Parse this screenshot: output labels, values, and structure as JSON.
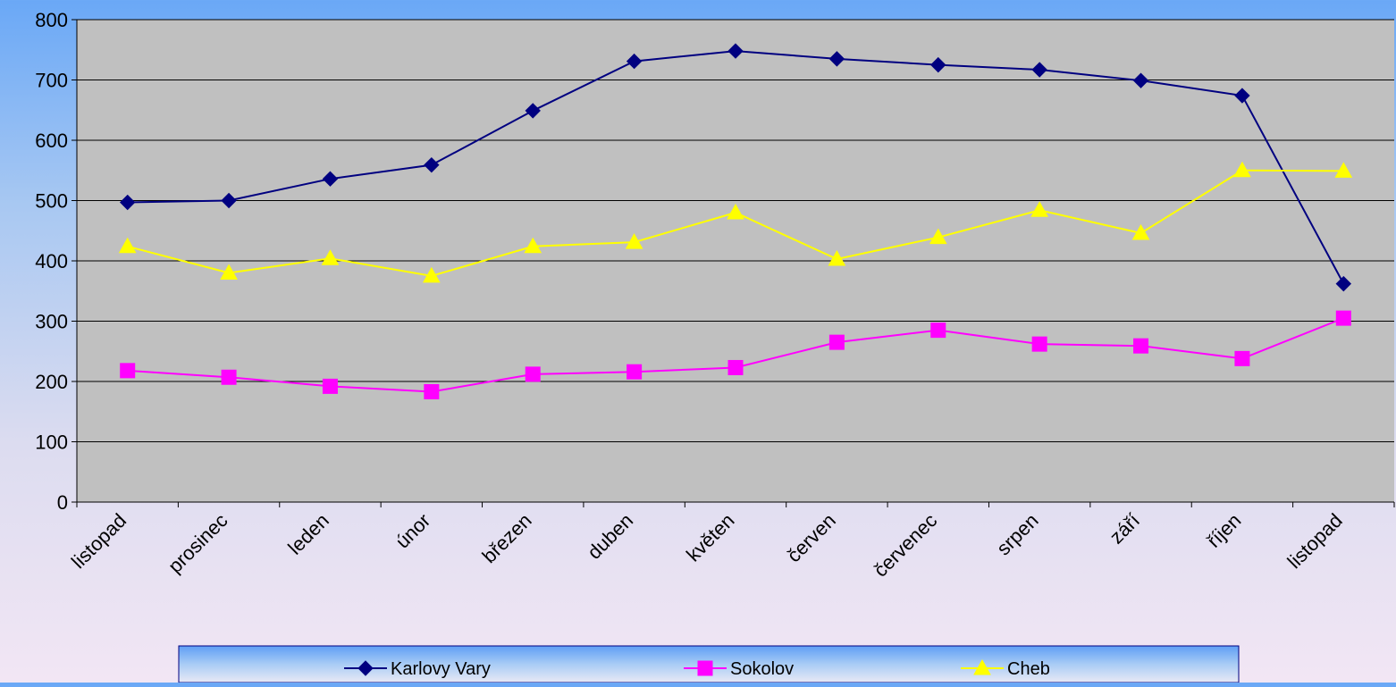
{
  "chart_data": {
    "type": "line",
    "title": "",
    "xlabel": "",
    "ylabel": "",
    "ylim": [
      0,
      800
    ],
    "yticks": [
      0,
      100,
      200,
      300,
      400,
      500,
      600,
      700,
      800
    ],
    "grid": true,
    "legend_position": "bottom",
    "plot_background": "#c0c0c0",
    "categories": [
      "listopad",
      "prosinec",
      "leden",
      "únor",
      "březen",
      "duben",
      "květen",
      "červen",
      "červenec",
      "srpen",
      "září",
      "říjen",
      "listopad"
    ],
    "series": [
      {
        "name": "Karlovy Vary",
        "color": "#000080",
        "marker": "diamond",
        "values": [
          497,
          500,
          536,
          559,
          649,
          731,
          748,
          735,
          725,
          717,
          699,
          674,
          362
        ]
      },
      {
        "name": "Sokolov",
        "color": "#ff00ff",
        "marker": "square",
        "values": [
          218,
          207,
          192,
          183,
          212,
          216,
          223,
          265,
          285,
          262,
          259,
          238,
          305
        ]
      },
      {
        "name": "Cheb",
        "color": "#ffff00",
        "marker": "triangle",
        "values": [
          424,
          380,
          404,
          375,
          424,
          431,
          480,
          403,
          439,
          484,
          446,
          550,
          549
        ]
      }
    ]
  }
}
